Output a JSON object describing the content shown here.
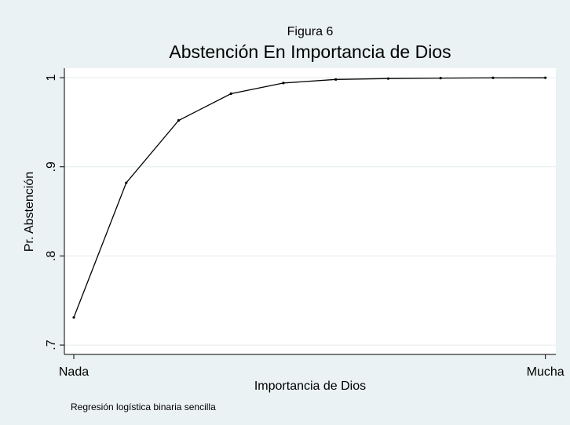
{
  "chart_data": {
    "type": "line",
    "subtitle": "Figura 6",
    "title": "Abstención En Importancia de Dios",
    "x_label": "Importancia de Dios",
    "y_label": "Pr. Abstención",
    "note": "Regresión logística binaria sencilla",
    "x": [
      1,
      2,
      3,
      4,
      5,
      6,
      7,
      8,
      9,
      10
    ],
    "series": [
      {
        "name": "Pr. Abstención",
        "color": "#000000",
        "values": [
          0.731,
          0.882,
          0.952,
          0.982,
          0.994,
          0.998,
          0.999,
          0.9995,
          0.9998,
          0.9999
        ]
      }
    ],
    "xlim": [
      0.82,
      10.2
    ],
    "xticks": [
      {
        "value": 1,
        "label": "Nada"
      },
      {
        "value": 10,
        "label": "Mucha"
      }
    ],
    "ylim": [
      0.6895,
      1.0106
    ],
    "yticks": [
      {
        "value": 0.7,
        "label": ".7"
      },
      {
        "value": 0.8,
        "label": ".8"
      },
      {
        "value": 0.9,
        "label": ".9"
      },
      {
        "value": 1,
        "label": "1"
      }
    ],
    "grid": true
  }
}
